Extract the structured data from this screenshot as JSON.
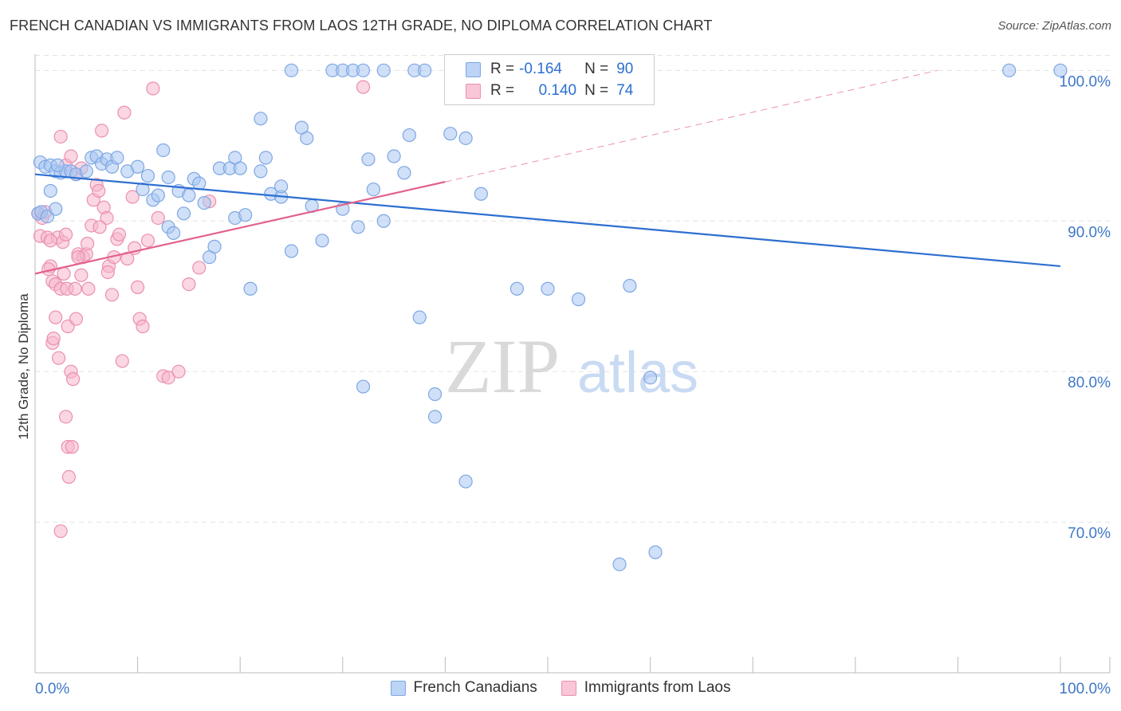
{
  "title": "FRENCH CANADIAN VS IMMIGRANTS FROM LAOS 12TH GRADE, NO DIPLOMA CORRELATION CHART",
  "source": "Source: ZipAtlas.com",
  "watermark": {
    "zip": "ZIP",
    "atlas": "atlas"
  },
  "legend": {
    "r_label": "R =",
    "n_label": "N =",
    "rows": [
      {
        "r": "-0.164",
        "n": "90"
      },
      {
        "r": "0.140",
        "n": "74"
      }
    ]
  },
  "colors": {
    "blue_fill": "#a9c7f2",
    "blue_stroke": "#7da7e3",
    "blue_line": "#2d6fd1",
    "pink_fill": "#f5b6cb",
    "pink_stroke": "#ec8fae",
    "pink_line": "#e2628d",
    "axis_text": "#3f78c7"
  },
  "chart_data": {
    "type": "scatter",
    "title": "FRENCH CANADIAN VS IMMIGRANTS FROM LAOS 12TH GRADE, NO DIPLOMA CORRELATION CHART",
    "xlabel": "",
    "ylabel": "12th Grade, No Diploma",
    "xlim": [
      0,
      100
    ],
    "ylim": [
      60,
      101.5
    ],
    "x_tick_labels": [
      "0.0%",
      "100.0%"
    ],
    "y_ticks": [
      70,
      80,
      90,
      100
    ],
    "y_tick_labels": [
      "70.0%",
      "80.0%",
      "90.0%",
      "100.0%"
    ],
    "grid": true,
    "legend_position": "top-center",
    "series": [
      {
        "name": "French Canadians",
        "r": -0.164,
        "n": 90,
        "trend": {
          "x": [
            0,
            100
          ],
          "y": [
            93.1,
            87.0
          ]
        },
        "points": [
          [
            0.5,
            93.9
          ],
          [
            1,
            93.6
          ],
          [
            1.5,
            93.7
          ],
          [
            2,
            93.3
          ],
          [
            2.5,
            93.2
          ],
          [
            3,
            93.3
          ],
          [
            3.5,
            93.3
          ],
          [
            4,
            93.1
          ],
          [
            5,
            93.3
          ],
          [
            5.5,
            94.2
          ],
          [
            6,
            94.3
          ],
          [
            6.5,
            93.8
          ],
          [
            7,
            94.1
          ],
          [
            7.5,
            93.6
          ],
          [
            8,
            94.2
          ],
          [
            9,
            93.3
          ],
          [
            10,
            93.6
          ],
          [
            10.5,
            92.1
          ],
          [
            11,
            93
          ],
          [
            11.5,
            91.4
          ],
          [
            12,
            91.7
          ],
          [
            12.5,
            94.7
          ],
          [
            13,
            92.9
          ],
          [
            13,
            89.6
          ],
          [
            13.5,
            89.2
          ],
          [
            14,
            92
          ],
          [
            14.5,
            90.5
          ],
          [
            15,
            91.7
          ],
          [
            15.5,
            92.8
          ],
          [
            16,
            92.5
          ],
          [
            16.5,
            91.2
          ],
          [
            17,
            87.6
          ],
          [
            17.5,
            88.3
          ],
          [
            18,
            93.5
          ],
          [
            19,
            93.5
          ],
          [
            19.5,
            90.2
          ],
          [
            19.5,
            94.2
          ],
          [
            20,
            93.5
          ],
          [
            20.5,
            90.4
          ],
          [
            21,
            85.5
          ],
          [
            22,
            96.8
          ],
          [
            22,
            93.3
          ],
          [
            22.5,
            94.2
          ],
          [
            23,
            91.8
          ],
          [
            24,
            91.6
          ],
          [
            24,
            92.3
          ],
          [
            25,
            88
          ],
          [
            25,
            100
          ],
          [
            26,
            96.2
          ],
          [
            26.5,
            95.5
          ],
          [
            27,
            91
          ],
          [
            28,
            88.7
          ],
          [
            29,
            100
          ],
          [
            30,
            100
          ],
          [
            30,
            90.8
          ],
          [
            31,
            100
          ],
          [
            31.5,
            89.6
          ],
          [
            32,
            100
          ],
          [
            32,
            79
          ],
          [
            32.5,
            94.1
          ],
          [
            33,
            92.1
          ],
          [
            34,
            100
          ],
          [
            34,
            90
          ],
          [
            35,
            94.3
          ],
          [
            36,
            93.2
          ],
          [
            36.5,
            95.7
          ],
          [
            37,
            100
          ],
          [
            37.5,
            83.6
          ],
          [
            38,
            100
          ],
          [
            39,
            77
          ],
          [
            39,
            78.5
          ],
          [
            40.5,
            95.8
          ],
          [
            42,
            95.5
          ],
          [
            42,
            72.7
          ],
          [
            43.5,
            91.8
          ],
          [
            45,
            100
          ],
          [
            47,
            85.5
          ],
          [
            50,
            85.5
          ],
          [
            53,
            84.8
          ],
          [
            57,
            67.2
          ],
          [
            58,
            85.7
          ],
          [
            60,
            79.6
          ],
          [
            60.5,
            68
          ],
          [
            0.3,
            90.5
          ],
          [
            0.6,
            90.6
          ],
          [
            1.2,
            90.3
          ],
          [
            1.5,
            92
          ],
          [
            2,
            90.8
          ],
          [
            2.2,
            93.7
          ],
          [
            95,
            100
          ],
          [
            100,
            100
          ]
        ]
      },
      {
        "name": "Immigrants from Laos",
        "r": 0.14,
        "n": 74,
        "trend": {
          "x": [
            0,
            40
          ],
          "y": [
            86.5,
            92.6
          ]
        },
        "trend_dashed": {
          "x": [
            40,
            88
          ],
          "y": [
            92.6,
            100
          ]
        },
        "points": [
          [
            0.3,
            90.5
          ],
          [
            0.5,
            89
          ],
          [
            0.7,
            90.2
          ],
          [
            1,
            90.6
          ],
          [
            1.2,
            88.9
          ],
          [
            1.5,
            87
          ],
          [
            1.7,
            86
          ],
          [
            2,
            85.8
          ],
          [
            2.2,
            88.9
          ],
          [
            2.5,
            85.5
          ],
          [
            2.7,
            88.6
          ],
          [
            3,
            89.1
          ],
          [
            3.2,
            83
          ],
          [
            3.5,
            80
          ],
          [
            3.7,
            79.5
          ],
          [
            4,
            83.5
          ],
          [
            4.2,
            87.8
          ],
          [
            4.5,
            86.4
          ],
          [
            4.7,
            87.6
          ],
          [
            5,
            87.8
          ],
          [
            5.2,
            85.5
          ],
          [
            5.5,
            89.7
          ],
          [
            5.7,
            91.4
          ],
          [
            6,
            92.4
          ],
          [
            6.2,
            92
          ],
          [
            6.5,
            96
          ],
          [
            6.7,
            90.9
          ],
          [
            7,
            90.2
          ],
          [
            7.2,
            87
          ],
          [
            7.5,
            85.1
          ],
          [
            7.7,
            87.6
          ],
          [
            8,
            88.8
          ],
          [
            8.2,
            89.1
          ],
          [
            8.5,
            80.7
          ],
          [
            8.7,
            97.2
          ],
          [
            9,
            87.5
          ],
          [
            9.5,
            91.6
          ],
          [
            9.7,
            88.2
          ],
          [
            10,
            85.6
          ],
          [
            10.2,
            83.5
          ],
          [
            10.5,
            83
          ],
          [
            11,
            88.7
          ],
          [
            11.5,
            98.8
          ],
          [
            12,
            90.2
          ],
          [
            12.5,
            79.7
          ],
          [
            13,
            79.6
          ],
          [
            14,
            80
          ],
          [
            15,
            85.8
          ],
          [
            16,
            86.9
          ],
          [
            17,
            91.3
          ],
          [
            2.5,
            95.6
          ],
          [
            3,
            93.7
          ],
          [
            3.5,
            94.3
          ],
          [
            4,
            93.1
          ],
          [
            4.5,
            93.5
          ],
          [
            1.7,
            81.9
          ],
          [
            1.8,
            82.2
          ],
          [
            3,
            77
          ],
          [
            3.2,
            75
          ],
          [
            3.3,
            73
          ],
          [
            3.6,
            75
          ],
          [
            2.5,
            69.4
          ],
          [
            2.3,
            80.9
          ],
          [
            2,
            83.6
          ],
          [
            1.5,
            88.7
          ],
          [
            1.3,
            86.8
          ],
          [
            2.8,
            86.5
          ],
          [
            3.1,
            85.5
          ],
          [
            3.9,
            85.5
          ],
          [
            4.2,
            87.6
          ],
          [
            5.1,
            88.5
          ],
          [
            6.3,
            89.6
          ],
          [
            7.1,
            86.6
          ],
          [
            32,
            98.9
          ]
        ]
      }
    ]
  },
  "bottom_legend": [
    {
      "label": "French Canadians"
    },
    {
      "label": "Immigrants from Laos"
    }
  ]
}
